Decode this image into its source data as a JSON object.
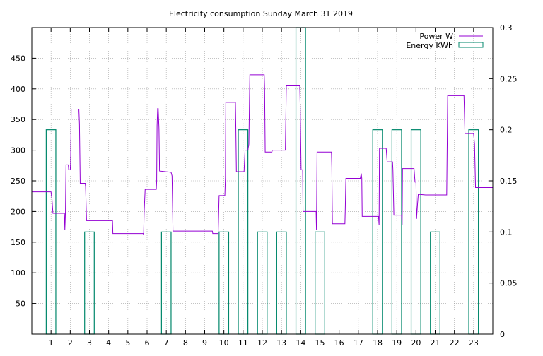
{
  "chart_data": {
    "type": "line",
    "title": "Electricity consumption Sunday March 31 2019",
    "xlabel": "",
    "ylabel": "",
    "xlim": [
      0,
      24
    ],
    "ylim": [
      0,
      500
    ],
    "y2lim": [
      0,
      0.3
    ],
    "grid": true,
    "legend_position": "top-right",
    "x_ticks": [
      1,
      2,
      3,
      4,
      5,
      6,
      7,
      8,
      9,
      10,
      11,
      12,
      13,
      14,
      15,
      16,
      17,
      18,
      19,
      20,
      21,
      22,
      23
    ],
    "x_tick_labels": [
      "1",
      "2",
      "3",
      "4",
      "5",
      "6",
      "7",
      "8",
      "9",
      "10",
      "11",
      "12",
      "13",
      "14",
      "15",
      "16",
      "17",
      "18",
      "19",
      "20",
      "21",
      "22",
      "23"
    ],
    "y_ticks": [
      50,
      100,
      150,
      200,
      250,
      300,
      350,
      400,
      450
    ],
    "y_tick_labels": [
      "50",
      "100",
      "150",
      "200",
      "250",
      "300",
      "350",
      "400",
      "450"
    ],
    "y2_ticks": [
      0,
      0.05,
      0.1,
      0.15,
      0.2,
      0.25,
      0.3
    ],
    "y2_tick_labels": [
      "0",
      "0.05",
      "0.1",
      "0.15",
      "0.2",
      "0.25",
      "0.3"
    ],
    "series": [
      {
        "name": "Power W",
        "axis": "left",
        "color": "#9400d3",
        "style": "step",
        "points": [
          [
            0.0,
            232
          ],
          [
            1.0,
            232
          ],
          [
            1.05,
            220
          ],
          [
            1.1,
            197
          ],
          [
            1.45,
            197
          ],
          [
            1.7,
            197
          ],
          [
            1.72,
            170
          ],
          [
            1.75,
            197
          ],
          [
            1.78,
            276
          ],
          [
            1.9,
            276
          ],
          [
            1.92,
            268
          ],
          [
            2.0,
            268
          ],
          [
            2.02,
            278
          ],
          [
            2.05,
            367
          ],
          [
            2.45,
            367
          ],
          [
            2.48,
            343
          ],
          [
            2.52,
            246
          ],
          [
            2.78,
            246
          ],
          [
            2.8,
            240
          ],
          [
            2.85,
            185
          ],
          [
            4.2,
            185
          ],
          [
            4.22,
            164
          ],
          [
            5.8,
            164
          ],
          [
            5.82,
            162
          ],
          [
            5.85,
            200
          ],
          [
            5.9,
            236
          ],
          [
            6.48,
            236
          ],
          [
            6.5,
            250
          ],
          [
            6.52,
            340
          ],
          [
            6.55,
            368
          ],
          [
            6.58,
            368
          ],
          [
            6.62,
            335
          ],
          [
            6.65,
            266
          ],
          [
            7.25,
            264
          ],
          [
            7.3,
            258
          ],
          [
            7.35,
            168
          ],
          [
            9.4,
            168
          ],
          [
            9.42,
            164
          ],
          [
            9.7,
            164
          ],
          [
            9.75,
            226
          ],
          [
            10.05,
            226
          ],
          [
            10.08,
            256
          ],
          [
            10.1,
            378
          ],
          [
            10.6,
            378
          ],
          [
            10.62,
            340
          ],
          [
            10.65,
            265
          ],
          [
            11.05,
            265
          ],
          [
            11.1,
            300
          ],
          [
            11.25,
            300
          ],
          [
            11.3,
            310
          ],
          [
            11.35,
            423
          ],
          [
            12.1,
            423
          ],
          [
            12.12,
            400
          ],
          [
            12.15,
            297
          ],
          [
            12.5,
            297
          ],
          [
            12.52,
            300
          ],
          [
            13.2,
            300
          ],
          [
            13.25,
            405
          ],
          [
            13.95,
            405
          ],
          [
            13.98,
            360
          ],
          [
            14.02,
            268
          ],
          [
            14.1,
            268
          ],
          [
            14.12,
            200
          ],
          [
            14.8,
            200
          ],
          [
            14.82,
            170
          ],
          [
            14.85,
            297
          ],
          [
            15.6,
            297
          ],
          [
            15.62,
            272
          ],
          [
            15.65,
            180
          ],
          [
            16.3,
            180
          ],
          [
            16.32,
            205
          ],
          [
            16.35,
            254
          ],
          [
            17.1,
            254
          ],
          [
            17.15,
            262
          ],
          [
            17.18,
            254
          ],
          [
            17.2,
            192
          ],
          [
            18.05,
            192
          ],
          [
            18.08,
            178
          ],
          [
            18.1,
            303
          ],
          [
            18.45,
            303
          ],
          [
            18.5,
            281
          ],
          [
            18.78,
            281
          ],
          [
            18.8,
            268
          ],
          [
            18.85,
            194
          ],
          [
            19.25,
            194
          ],
          [
            19.28,
            178
          ],
          [
            19.3,
            270
          ],
          [
            19.9,
            270
          ],
          [
            19.95,
            248
          ],
          [
            20.0,
            248
          ],
          [
            20.03,
            188
          ],
          [
            20.08,
            212
          ],
          [
            20.12,
            228
          ],
          [
            20.5,
            227
          ],
          [
            21.6,
            227
          ],
          [
            21.65,
            389
          ],
          [
            22.5,
            389
          ],
          [
            22.55,
            327
          ],
          [
            23.0,
            327
          ],
          [
            23.05,
            310
          ],
          [
            23.1,
            239
          ],
          [
            24.0,
            239
          ]
        ]
      },
      {
        "name": "Energy KWh",
        "axis": "right",
        "color": "#00876b",
        "style": "bar",
        "bars": [
          {
            "x0": 0.75,
            "x1": 1.25,
            "value": 0.2
          },
          {
            "x0": 2.75,
            "x1": 3.25,
            "value": 0.1
          },
          {
            "x0": 6.75,
            "x1": 7.25,
            "value": 0.1
          },
          {
            "x0": 9.75,
            "x1": 10.25,
            "value": 0.1
          },
          {
            "x0": 10.75,
            "x1": 11.25,
            "value": 0.2
          },
          {
            "x0": 11.75,
            "x1": 12.25,
            "value": 0.1
          },
          {
            "x0": 12.75,
            "x1": 13.25,
            "value": 0.1
          },
          {
            "x0": 13.75,
            "x1": 14.25,
            "value": 0.3
          },
          {
            "x0": 14.75,
            "x1": 15.25,
            "value": 0.1
          },
          {
            "x0": 17.75,
            "x1": 18.25,
            "value": 0.2
          },
          {
            "x0": 18.75,
            "x1": 19.25,
            "value": 0.2
          },
          {
            "x0": 19.75,
            "x1": 20.25,
            "value": 0.2
          },
          {
            "x0": 20.75,
            "x1": 21.25,
            "value": 0.1
          },
          {
            "x0": 22.75,
            "x1": 23.25,
            "value": 0.2
          }
        ]
      }
    ]
  }
}
